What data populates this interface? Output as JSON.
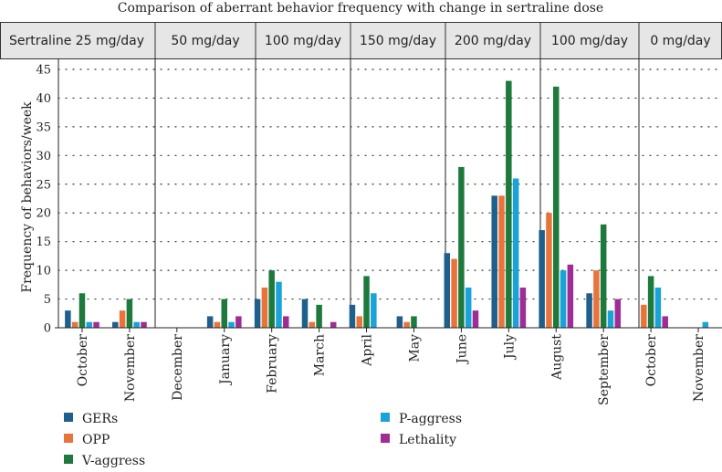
{
  "chart_data": {
    "type": "bar",
    "title": "Comparison of aberrant behavior frequency with change in sertraline dose",
    "ylabel": "Frequency of behaviors/week",
    "xlabel": "",
    "ylim": [
      0,
      45
    ],
    "yticks": [
      0,
      5,
      10,
      15,
      20,
      25,
      30,
      35,
      40,
      45
    ],
    "grid": "dotted horizontal",
    "categories": [
      "October",
      "November",
      "December",
      "January",
      "February",
      "March",
      "April",
      "May",
      "June",
      "July",
      "August",
      "September",
      "October",
      "November"
    ],
    "dose_periods": [
      {
        "label": "Sertraline 25 mg/day",
        "months": [
          0,
          1
        ]
      },
      {
        "label": "50 mg/day",
        "months": [
          2,
          3
        ]
      },
      {
        "label": "100 mg/day",
        "months": [
          4,
          5
        ]
      },
      {
        "label": "150 mg/day",
        "months": [
          6,
          7
        ]
      },
      {
        "label": "200 mg/day",
        "months": [
          8,
          9
        ]
      },
      {
        "label": "100 mg/day",
        "months": [
          10,
          11
        ]
      },
      {
        "label": "0 mg/day",
        "months": [
          12,
          13
        ]
      }
    ],
    "series": [
      {
        "name": "GERs",
        "color": "#1f5f8b",
        "values": [
          3,
          1,
          0,
          2,
          5,
          5,
          4,
          2,
          13,
          23,
          17,
          6,
          0,
          0
        ]
      },
      {
        "name": "OPP",
        "color": "#e8743b",
        "values": [
          1,
          3,
          0,
          1,
          7,
          1,
          2,
          1,
          12,
          23,
          20,
          10,
          4,
          0
        ]
      },
      {
        "name": "V-aggress",
        "color": "#1e7a3c",
        "values": [
          6,
          5,
          0,
          5,
          10,
          4,
          9,
          2,
          28,
          43,
          42,
          18,
          9,
          0
        ]
      },
      {
        "name": "P-aggress",
        "color": "#1aa3d9",
        "values": [
          1,
          1,
          0,
          1,
          8,
          0,
          6,
          0,
          7,
          26,
          10,
          3,
          7,
          1
        ]
      },
      {
        "name": "Lethality",
        "color": "#a02d96",
        "values": [
          1,
          1,
          0,
          2,
          2,
          1,
          0,
          0,
          3,
          7,
          11,
          5,
          2,
          0
        ]
      }
    ],
    "legend_position": "bottom-left"
  }
}
